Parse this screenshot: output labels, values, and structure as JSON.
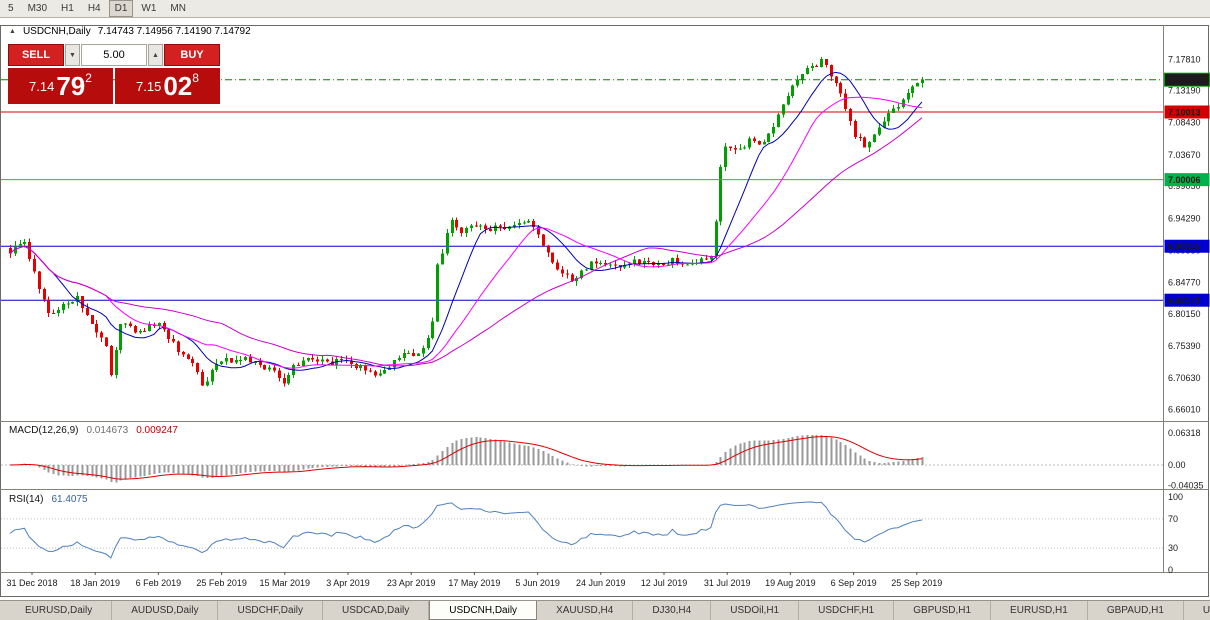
{
  "toolbar": {
    "timeframes": [
      "5",
      "M30",
      "H1",
      "H4",
      "D1",
      "W1",
      "MN"
    ],
    "active": "D1"
  },
  "chart": {
    "marker_glyph": "▲",
    "symbol_label": "USDCNH,Daily",
    "ohlc_text": "7.14743 7.14956 7.14190 7.14792"
  },
  "trade_panel": {
    "sell_label": "SELL",
    "buy_label": "BUY",
    "lot_size": "5.00",
    "lot_down_glyph": "▼",
    "lot_up_glyph": "▲",
    "sell_quote": {
      "prefix": "7.14",
      "big": "79",
      "sup": "2"
    },
    "buy_quote": {
      "prefix": "7.15",
      "big": "02",
      "sup": "8"
    }
  },
  "price_axis": {
    "ticks": [
      "7.17810",
      "7.13190",
      "7.08430",
      "7.03670",
      "6.99050",
      "6.94290",
      "6.89530",
      "6.84770",
      "6.80150",
      "6.75390",
      "6.70630",
      "6.66010"
    ],
    "badges": [
      {
        "name": "bid-price",
        "text": "7.14792",
        "price": 7.14792,
        "bg": "#1c1c1c",
        "fg": "#ffffff",
        "border": "#00A000",
        "line_color": "#008000",
        "line_style": "dashdot"
      },
      {
        "name": "level-7-10013",
        "text": "7.10013",
        "price": 7.10013,
        "bg": "#d40000",
        "fg": "#ffffff",
        "line_color": "#d40000",
        "line_style": "solid"
      },
      {
        "name": "level-7-00006",
        "text": "7.00006",
        "price": 7.00006,
        "bg": "#00b24a",
        "fg": "#ffffff",
        "line_color": "#00cc33",
        "line_style": "solid"
      },
      {
        "name": "level-6-90155",
        "text": "6.90155",
        "price": 6.90155,
        "bg": "#0000d0",
        "fg": "#ffffff",
        "line_color": "#0000d0",
        "line_style": "solid"
      },
      {
        "name": "level-6-82172",
        "text": "6.82172",
        "price": 6.82172,
        "bg": "#0000d0",
        "fg": "#ffffff",
        "line_color": "#0000d0",
        "line_style": "solid"
      }
    ]
  },
  "indicators": {
    "macd": {
      "label": "MACD(12,26,9)",
      "value_main": "0.014673",
      "value_signal": "0.009247",
      "axis": [
        "0.06318",
        "0.00",
        "-0.04035"
      ],
      "axis_values": [
        0.06318,
        0,
        -0.04035
      ]
    },
    "rsi": {
      "label": "RSI(14)",
      "value": "61.4075",
      "axis": [
        "100",
        "70",
        "30",
        "0"
      ],
      "axis_values": [
        100,
        70,
        30,
        0
      ],
      "levels": [
        70,
        30
      ]
    }
  },
  "date_axis": [
    "31 Dec 2018",
    "18 Jan 2019",
    "6 Feb 2019",
    "25 Feb 2019",
    "15 Mar 2019",
    "3 Apr 2019",
    "23 Apr 2019",
    "17 May 2019",
    "5 Jun 2019",
    "24 Jun 2019",
    "12 Jul 2019",
    "31 Jul 2019",
    "19 Aug 2019",
    "6 Sep 2019",
    "25 Sep 2019"
  ],
  "tabs": {
    "items": [
      "EURUSD,Daily",
      "AUDUSD,Daily",
      "USDCHF,Daily",
      "USDCAD,Daily",
      "USDCNH,Daily",
      "XAUUSD,H4",
      "DJ30,H4",
      "USDOil,H1",
      "USDCHF,H1",
      "GBPUSD,H1",
      "EURUSD,H1",
      "GBPAUD,H1",
      "USDJP"
    ],
    "active_index": 4
  },
  "chart_data": {
    "type": "candlestick",
    "symbol": "USDCNH",
    "timeframe": "Daily",
    "visible_range": {
      "start": "31 Dec 2018",
      "end": "27 Sep 2019"
    },
    "price_range_approx": [
      6.643,
      7.229
    ],
    "current_ohlc": {
      "open": 7.14743,
      "high": 7.14956,
      "low": 7.1419,
      "close": 7.14792
    },
    "bid": 7.14792,
    "ask": 7.15028,
    "horizontal_levels": [
      {
        "price": 7.10013,
        "color": "red"
      },
      {
        "price": 7.00006,
        "color": "green"
      },
      {
        "price": 6.90155,
        "color": "blue"
      },
      {
        "price": 6.82172,
        "color": "blue"
      }
    ],
    "moving_averages": [
      {
        "period": 10,
        "color": "#0000b8"
      },
      {
        "period": 21,
        "color": "#ff00ff"
      },
      {
        "period": 45,
        "color": "#cc00cc"
      }
    ],
    "candle_count": 191,
    "close_anchors": [
      [
        0,
        6.895
      ],
      [
        3,
        6.905
      ],
      [
        8,
        6.8
      ],
      [
        11,
        6.815
      ],
      [
        14,
        6.825
      ],
      [
        18,
        6.77
      ],
      [
        20,
        6.758
      ],
      [
        21,
        6.715
      ],
      [
        23,
        6.788
      ],
      [
        27,
        6.775
      ],
      [
        31,
        6.79
      ],
      [
        35,
        6.745
      ],
      [
        38,
        6.728
      ],
      [
        40,
        6.695
      ],
      [
        43,
        6.728
      ],
      [
        48,
        6.737
      ],
      [
        52,
        6.726
      ],
      [
        55,
        6.715
      ],
      [
        57,
        6.698
      ],
      [
        59,
        6.724
      ],
      [
        62,
        6.735
      ],
      [
        66,
        6.728
      ],
      [
        69,
        6.732
      ],
      [
        73,
        6.722
      ],
      [
        76,
        6.713
      ],
      [
        79,
        6.725
      ],
      [
        82,
        6.74
      ],
      [
        86,
        6.748
      ],
      [
        88,
        6.79
      ],
      [
        89,
        6.87
      ],
      [
        91,
        6.92
      ],
      [
        92,
        6.938
      ],
      [
        94,
        6.925
      ],
      [
        96,
        6.935
      ],
      [
        99,
        6.928
      ],
      [
        103,
        6.93
      ],
      [
        106,
        6.932
      ],
      [
        108,
        6.94
      ],
      [
        110,
        6.92
      ],
      [
        113,
        6.88
      ],
      [
        115,
        6.862
      ],
      [
        117,
        6.852
      ],
      [
        120,
        6.87
      ],
      [
        122,
        6.88
      ],
      [
        126,
        6.872
      ],
      [
        130,
        6.878
      ],
      [
        134,
        6.875
      ],
      [
        138,
        6.88
      ],
      [
        142,
        6.877
      ],
      [
        146,
        6.885
      ],
      [
        147,
        6.94
      ],
      [
        148,
        7.02
      ],
      [
        149,
        7.045
      ],
      [
        150,
        7.05
      ],
      [
        152,
        7.042
      ],
      [
        154,
        7.058
      ],
      [
        156,
        7.048
      ],
      [
        158,
        7.065
      ],
      [
        160,
        7.095
      ],
      [
        162,
        7.125
      ],
      [
        164,
        7.15
      ],
      [
        166,
        7.162
      ],
      [
        168,
        7.17
      ],
      [
        169,
        7.178
      ],
      [
        170,
        7.168
      ],
      [
        172,
        7.145
      ],
      [
        174,
        7.105
      ],
      [
        176,
        7.065
      ],
      [
        178,
        7.052
      ],
      [
        179,
        7.058
      ],
      [
        181,
        7.08
      ],
      [
        183,
        7.095
      ],
      [
        185,
        7.112
      ],
      [
        187,
        7.13
      ],
      [
        189,
        7.14
      ],
      [
        190,
        7.14792
      ]
    ],
    "macd": {
      "fast": 12,
      "slow": 26,
      "signal": 9,
      "last_main": 0.014673,
      "last_signal": 0.009247
    },
    "rsi": {
      "period": 14,
      "last": 61.4075
    }
  }
}
